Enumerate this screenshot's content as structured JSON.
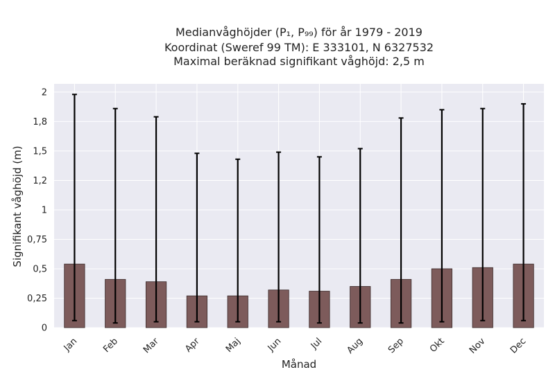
{
  "chart_data": {
    "type": "bar",
    "title_lines": [
      "Medianvåghöjder (P₁, P₉₉) för år 1979 - 2019",
      "Koordinat (Sweref 99 TM): E 333101, N 6327532",
      "Maximal beräknad signifikant våghöjd: 2,5 m"
    ],
    "xlabel": "Månad",
    "ylabel": "Signifikant våghöjd (m)",
    "categories": [
      "Jan",
      "Feb",
      "Mar",
      "Apr",
      "Maj",
      "Jun",
      "Jul",
      "Aug",
      "Sep",
      "Okt",
      "Nov",
      "Dec"
    ],
    "values": [
      0.54,
      0.41,
      0.39,
      0.27,
      0.27,
      0.32,
      0.31,
      0.35,
      0.41,
      0.5,
      0.51,
      0.54
    ],
    "err_low": [
      0.06,
      0.04,
      0.05,
      0.05,
      0.05,
      0.05,
      0.04,
      0.04,
      0.04,
      0.05,
      0.06,
      0.06
    ],
    "err_high": [
      1.98,
      1.86,
      1.79,
      1.48,
      1.43,
      1.49,
      1.45,
      1.52,
      1.78,
      1.85,
      1.86,
      1.9
    ],
    "yticks": [
      0,
      0.25,
      0.5,
      0.75,
      1,
      1.25,
      1.5,
      1.75,
      2
    ],
    "ytick_labels": [
      "0",
      "0,25",
      "0,5",
      "0,75",
      "1",
      "1,2",
      "1,5",
      "1,8",
      "2"
    ],
    "ylim": [
      0,
      2.07
    ],
    "grid": true,
    "colors": {
      "bar": "#7d5b5b",
      "bar_edge": "#3a2a2a",
      "error": "#000000",
      "background": "#eaeaf2",
      "grid": "#ffffff"
    }
  }
}
